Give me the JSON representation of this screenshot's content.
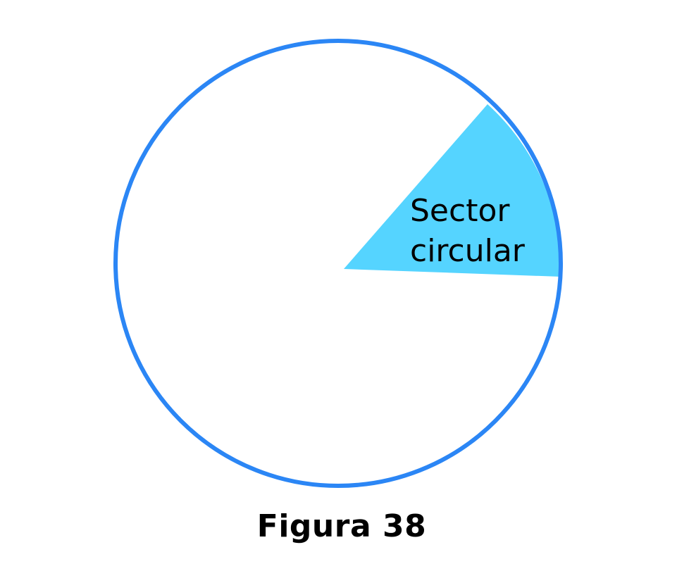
{
  "diagram": {
    "sector_label_line1": "Sector",
    "sector_label_line2": "circular",
    "caption": "Figura 38"
  },
  "colors": {
    "circle_stroke": "#2B86F5",
    "sector_fill": "#55D4FF",
    "text": "#000000",
    "background": "#FFFFFF"
  }
}
